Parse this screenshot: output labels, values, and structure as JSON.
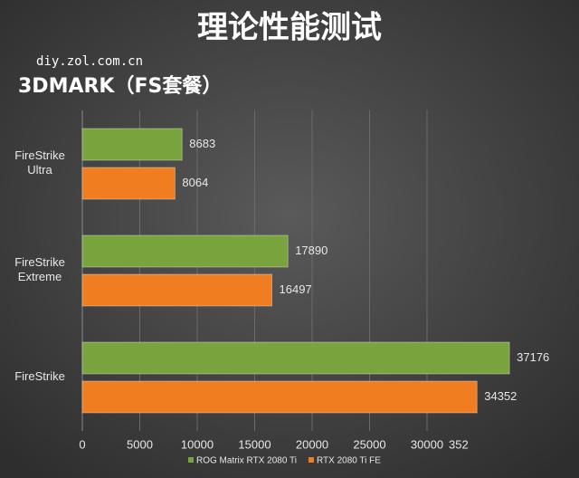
{
  "chart_data": {
    "type": "hbar",
    "title": "理论性能测试",
    "watermark": "diy.zol.com.cn",
    "subtitle": "3DMARK（FS套餐）",
    "categories": [
      "FireStrike Ultra",
      "FireStrike Extreme",
      "FireStrike"
    ],
    "series": [
      {
        "name": "ROG Matrix RTX 2080 Ti",
        "color": "#79a33c",
        "values": [
          8683,
          17890,
          37176
        ]
      },
      {
        "name": "RTX 2080 Ti FE",
        "color": "#f07d1f",
        "values": [
          8064,
          16497,
          34352
        ]
      }
    ],
    "xlim": [
      0,
      40000
    ],
    "xticks": [
      0,
      5000,
      10000,
      15000,
      20000,
      25000,
      30000
    ],
    "annotation": "352",
    "grid": true,
    "legend": "bottom-right"
  }
}
